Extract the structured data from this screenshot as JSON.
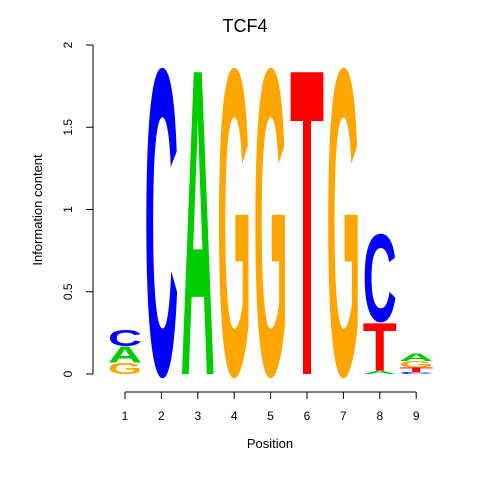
{
  "chart_data": {
    "type": "sequence-logo",
    "title": "TCF4",
    "xlabel": "Position",
    "ylabel": "Information content",
    "ylim": [
      0,
      2
    ],
    "y_ticks": [
      "0",
      "0.5",
      "1",
      "1.5",
      "2"
    ],
    "y_tick_values": [
      0,
      0.5,
      1,
      1.5,
      2
    ],
    "positions": [
      "1",
      "2",
      "3",
      "4",
      "5",
      "6",
      "7",
      "8",
      "9"
    ],
    "colors": {
      "A": "#00cc00",
      "C": "#0000ff",
      "G": "#ffa500",
      "T": "#ff0000"
    },
    "stacks": [
      [
        {
          "letter": "G",
          "height": 0.07
        },
        {
          "letter": "A",
          "height": 0.1
        },
        {
          "letter": "C",
          "height": 0.1
        }
      ],
      [
        {
          "letter": "C",
          "height": 1.92
        }
      ],
      [
        {
          "letter": "A",
          "height": 1.92
        }
      ],
      [
        {
          "letter": "G",
          "height": 1.92
        }
      ],
      [
        {
          "letter": "G",
          "height": 1.92
        }
      ],
      [
        {
          "letter": "T",
          "height": 1.92
        }
      ],
      [
        {
          "letter": "G",
          "height": 1.92
        }
      ],
      [
        {
          "letter": "A",
          "height": 0.02
        },
        {
          "letter": "T",
          "height": 0.3
        },
        {
          "letter": "C",
          "height": 0.55
        }
      ],
      [
        {
          "letter": "C",
          "height": 0.01
        },
        {
          "letter": "T",
          "height": 0.03
        },
        {
          "letter": "G",
          "height": 0.04
        },
        {
          "letter": "A",
          "height": 0.05
        }
      ]
    ]
  }
}
